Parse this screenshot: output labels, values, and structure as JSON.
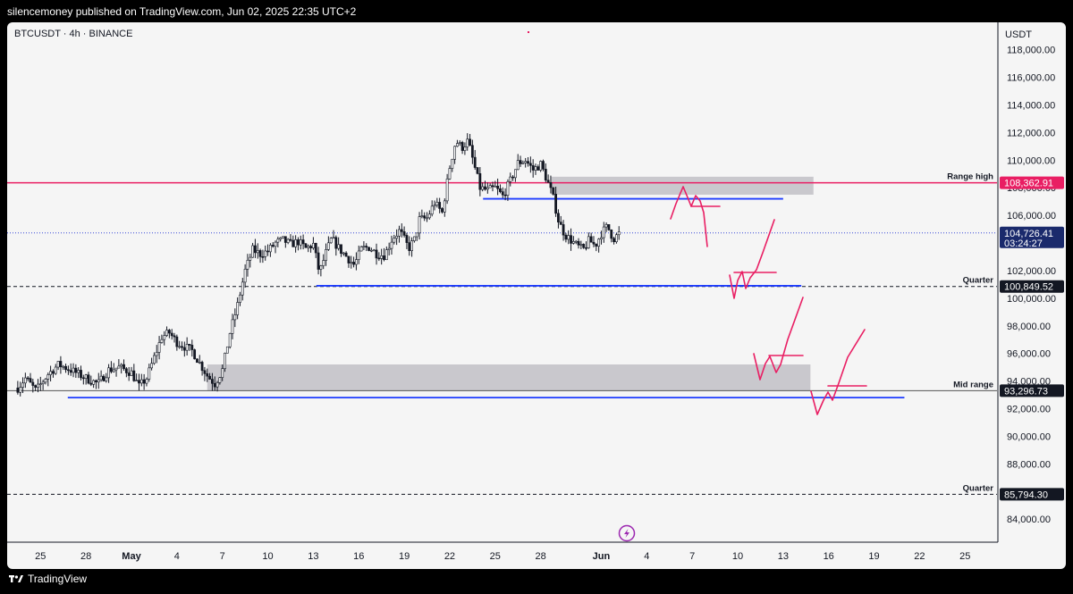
{
  "header": {
    "published": "silencemoney published on TradingView.com, Jun 02, 2025 22:35 UTC+2"
  },
  "symbol_line": "BTCUSDT · 4h · BINANCE",
  "footer": {
    "brand": "TradingView"
  },
  "colors": {
    "background": "#f5f5f5",
    "candle": "#131722",
    "blue_line": "#1e3cff",
    "pink": "#e91e63",
    "zone": "#c9c8cd",
    "price_dotted": "#3b4bd6"
  },
  "icons": {
    "logo": "tradingview-logo-icon",
    "flash": "lightning-icon"
  },
  "chart_data": {
    "type": "candlestick",
    "timeframe": "4h",
    "ylabel": "USDT",
    "ylim": [
      82000,
      119500
    ],
    "grid": false,
    "y_ticks": [
      84000,
      86000,
      88000,
      90000,
      92000,
      94000,
      96000,
      98000,
      100000,
      102000,
      104000,
      106000,
      108000,
      110000,
      112000,
      114000,
      116000,
      118000
    ],
    "y_tick_labels": [
      "84,000.00",
      "86,000.00",
      "88,000.00",
      "90,000.00",
      "92,000.00",
      "94,000.00",
      "96,000.00",
      "98,000.00",
      "100,000.00",
      "102,000.00",
      "104,000.00",
      "106,000.00",
      "108,000.00",
      "110,000.00",
      "112,000.00",
      "114,000.00",
      "116,000.00",
      "118,000.00"
    ],
    "x_ticks": [
      {
        "label": "25",
        "day": -6
      },
      {
        "label": "28",
        "day": -3
      },
      {
        "label": "May",
        "day": 0
      },
      {
        "label": "4",
        "day": 3
      },
      {
        "label": "7",
        "day": 6
      },
      {
        "label": "10",
        "day": 9
      },
      {
        "label": "13",
        "day": 12
      },
      {
        "label": "16",
        "day": 15
      },
      {
        "label": "19",
        "day": 18
      },
      {
        "label": "22",
        "day": 21
      },
      {
        "label": "25",
        "day": 24
      },
      {
        "label": "28",
        "day": 27
      },
      {
        "label": "Jun",
        "day": 31
      },
      {
        "label": "4",
        "day": 34
      },
      {
        "label": "7",
        "day": 37
      },
      {
        "label": "10",
        "day": 40
      },
      {
        "label": "13",
        "day": 43
      },
      {
        "label": "16",
        "day": 46
      },
      {
        "label": "19",
        "day": 49
      },
      {
        "label": "22",
        "day": 52
      },
      {
        "label": "25",
        "day": 55
      }
    ],
    "price_path": [
      [
        -7.5,
        93500
      ],
      [
        -7,
        94200
      ],
      [
        -6.3,
        93300
      ],
      [
        -5.5,
        94500
      ],
      [
        -4.8,
        95200
      ],
      [
        -4,
        94800
      ],
      [
        -3,
        94200
      ],
      [
        -2.2,
        93800
      ],
      [
        -1.5,
        94800
      ],
      [
        -0.8,
        95000
      ],
      [
        0,
        94600
      ],
      [
        0.5,
        93600
      ],
      [
        1,
        94200
      ],
      [
        1.5,
        95700
      ],
      [
        2,
        97200
      ],
      [
        2.5,
        97500
      ],
      [
        3,
        96800
      ],
      [
        3.5,
        96500
      ],
      [
        4,
        96200
      ],
      [
        4.5,
        95300
      ],
      [
        5,
        94400
      ],
      [
        5.5,
        93800
      ],
      [
        6,
        94800
      ],
      [
        6.5,
        97500
      ],
      [
        7,
        99500
      ],
      [
        7.5,
        102000
      ],
      [
        8,
        103500
      ],
      [
        8.5,
        103200
      ],
      [
        9,
        103400
      ],
      [
        9.5,
        104000
      ],
      [
        10,
        104200
      ],
      [
        10.5,
        103900
      ],
      [
        11,
        104100
      ],
      [
        11.5,
        103600
      ],
      [
        12,
        103900
      ],
      [
        12.4,
        101800
      ],
      [
        12.8,
        103200
      ],
      [
        13.2,
        104300
      ],
      [
        13.7,
        103600
      ],
      [
        14.2,
        103000
      ],
      [
        14.7,
        102400
      ],
      [
        15.2,
        103600
      ],
      [
        15.7,
        103700
      ],
      [
        16.2,
        103200
      ],
      [
        16.7,
        103100
      ],
      [
        17.2,
        104300
      ],
      [
        17.7,
        104900
      ],
      [
        18.3,
        103600
      ],
      [
        18.7,
        104300
      ],
      [
        19,
        105700
      ],
      [
        19.5,
        105800
      ],
      [
        20,
        106900
      ],
      [
        20.5,
        106200
      ],
      [
        21,
        109500
      ],
      [
        21.4,
        111400
      ],
      [
        21.8,
        110900
      ],
      [
        22.2,
        111400
      ],
      [
        22.6,
        109700
      ],
      [
        23,
        108000
      ],
      [
        23.5,
        107800
      ],
      [
        24,
        108000
      ],
      [
        24.5,
        107400
      ],
      [
        25,
        108500
      ],
      [
        25.5,
        109800
      ],
      [
        26,
        110000
      ],
      [
        26.5,
        109300
      ],
      [
        27,
        109700
      ],
      [
        27.4,
        108600
      ],
      [
        27.8,
        107400
      ],
      [
        28.2,
        105500
      ],
      [
        28.6,
        104600
      ],
      [
        29,
        104200
      ],
      [
        29.4,
        103800
      ],
      [
        29.8,
        103500
      ],
      [
        30.2,
        104200
      ],
      [
        30.6,
        103800
      ],
      [
        31,
        104700
      ],
      [
        31.4,
        105200
      ],
      [
        31.8,
        104300
      ],
      [
        32.2,
        104700
      ]
    ],
    "horizontal_levels": [
      {
        "label": "Range high",
        "value": 108362.91,
        "value_label": "108,362.91",
        "style": "solid-pink"
      },
      {
        "label": "Quarter",
        "value": 100849.52,
        "value_label": "100,849.52",
        "style": "dashed"
      },
      {
        "label": "Mid range",
        "value": 93296.73,
        "value_label": "93,296.73",
        "style": "solid-gray"
      },
      {
        "label": "Quarter",
        "value": 85794.3,
        "value_label": "85,794.30",
        "style": "dashed"
      }
    ],
    "current_price": {
      "value": 104726.41,
      "value_label": "104,726.41",
      "countdown": "03:24:27"
    },
    "zones": [
      {
        "day_from": 27.7,
        "day_to": 45,
        "low": 107500,
        "high": 108800
      },
      {
        "day_from": 5,
        "day_to": 44.8,
        "low": 93300,
        "high": 95200
      }
    ],
    "support_lines": [
      {
        "day_from": 23.2,
        "day_to": 43,
        "value": 107200
      },
      {
        "day_from": 12.2,
        "day_to": 44.2,
        "value": 100900
      },
      {
        "day_from": -4.2,
        "day_to": 51,
        "value": 92800
      }
    ]
  }
}
